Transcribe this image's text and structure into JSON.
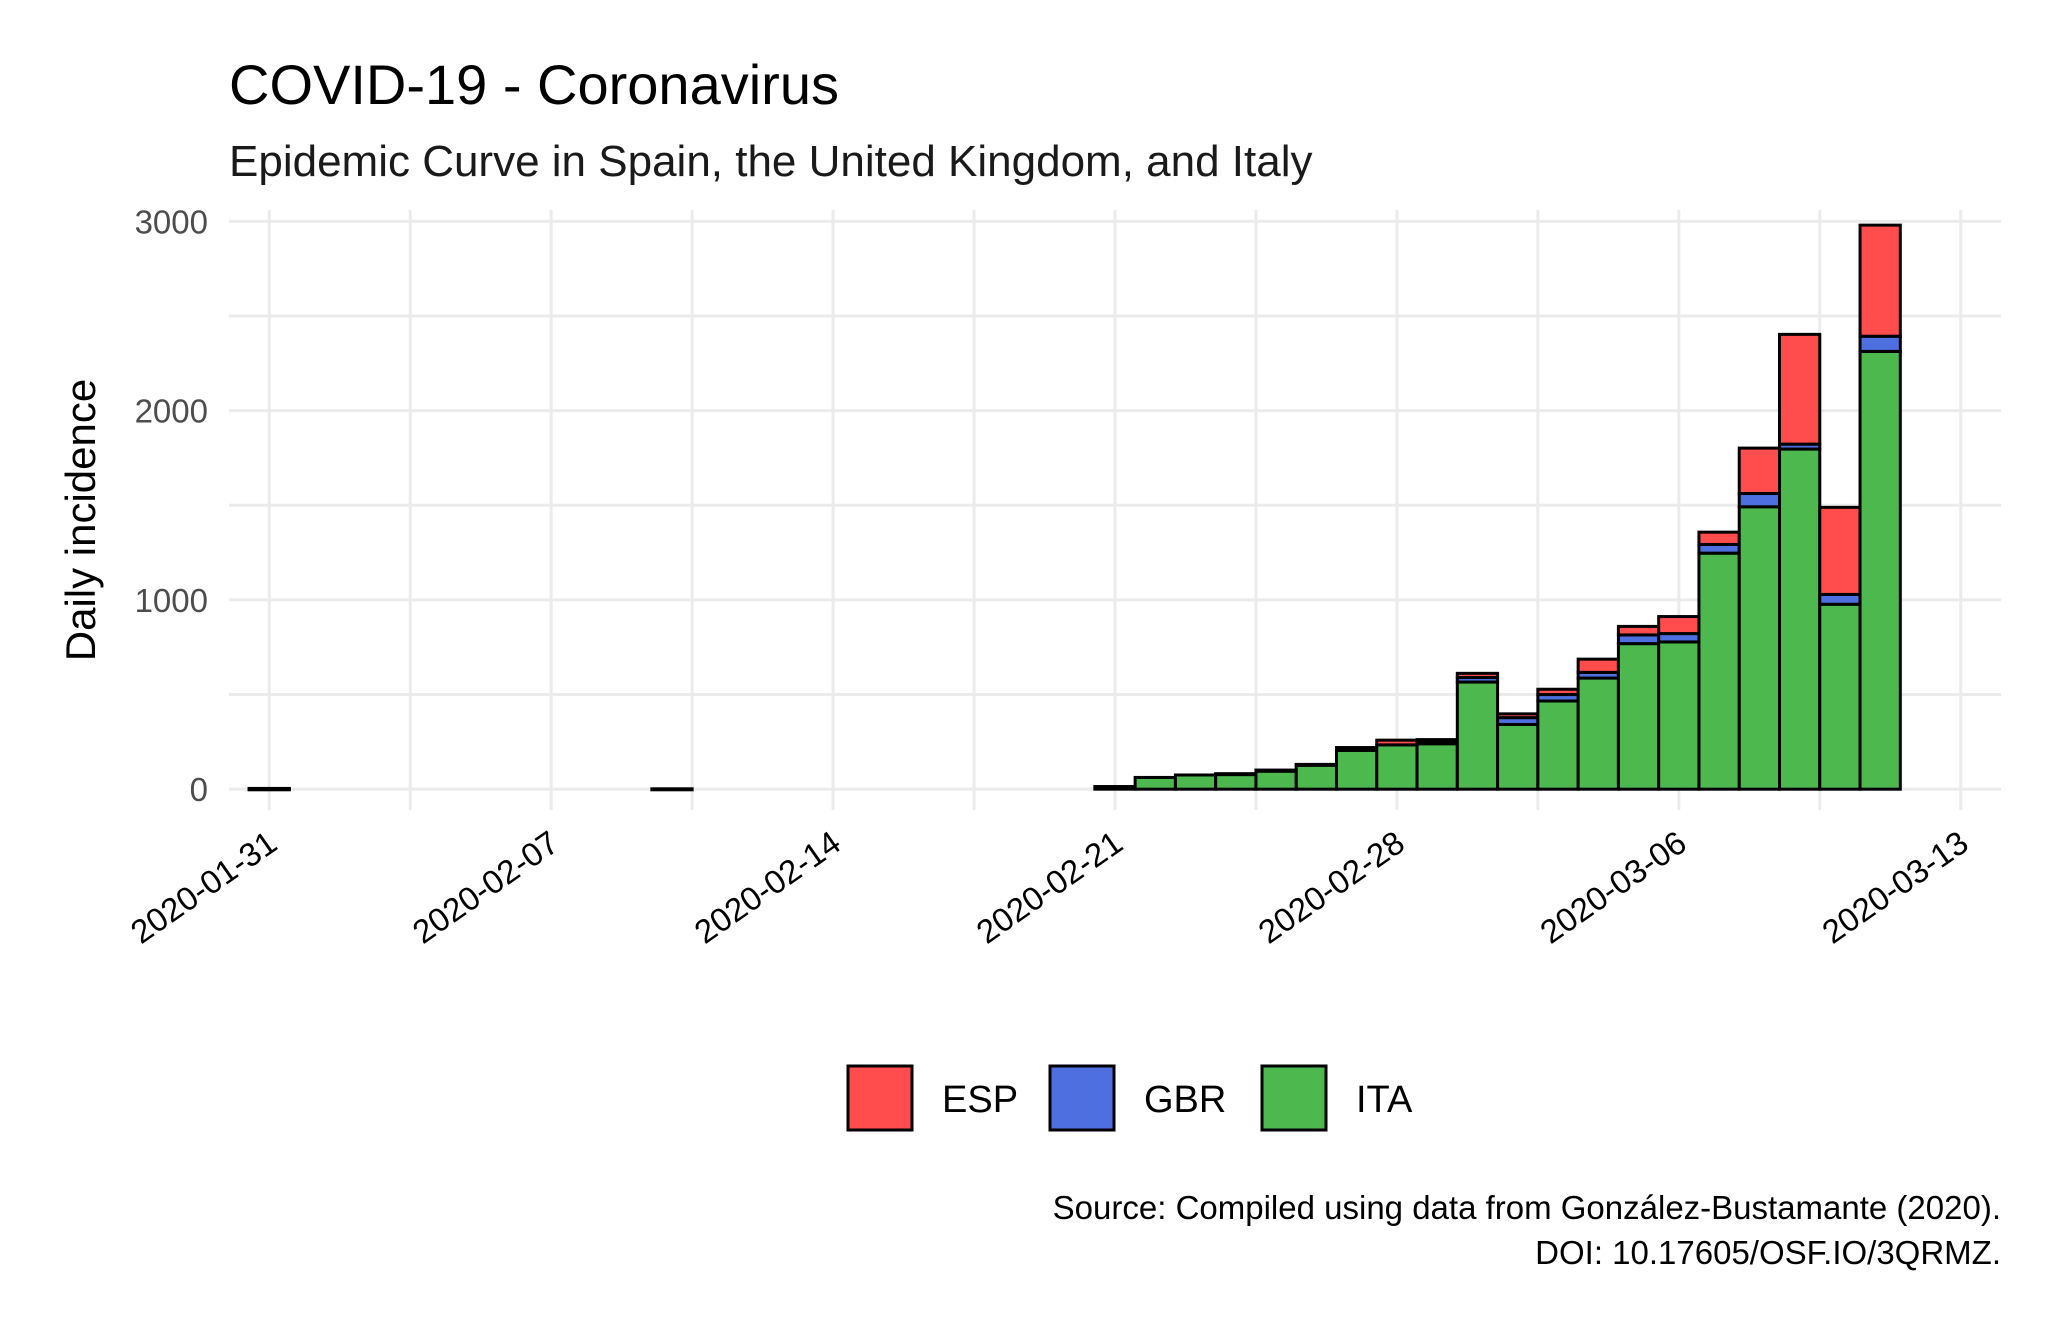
{
  "chart_data": {
    "type": "bar",
    "stacked": true,
    "title": "COVID-19 - Coronavirus",
    "subtitle": "Epidemic Curve in Spain, the United Kingdom, and Italy",
    "xlabel": "",
    "ylabel": "Daily incidence",
    "x_start_date": "2020-01-31",
    "x_ticks": [
      "2020-01-31",
      "2020-02-07",
      "2020-02-14",
      "2020-02-21",
      "2020-02-28",
      "2020-03-06",
      "2020-03-13"
    ],
    "x_range": [
      "2020-01-30",
      "2020-03-14"
    ],
    "y_ticks": [
      0,
      1000,
      2000,
      3000
    ],
    "ylim": [
      -110,
      3060
    ],
    "grid": true,
    "legend_position": "bottom",
    "categories": [
      "2020-01-31",
      "2020-02-01",
      "2020-02-02",
      "2020-02-03",
      "2020-02-04",
      "2020-02-05",
      "2020-02-06",
      "2020-02-07",
      "2020-02-08",
      "2020-02-09",
      "2020-02-10",
      "2020-02-11",
      "2020-02-12",
      "2020-02-13",
      "2020-02-14",
      "2020-02-15",
      "2020-02-16",
      "2020-02-17",
      "2020-02-18",
      "2020-02-19",
      "2020-02-20",
      "2020-02-21",
      "2020-02-22",
      "2020-02-23",
      "2020-02-24",
      "2020-02-25",
      "2020-02-26",
      "2020-02-27",
      "2020-02-28",
      "2020-02-29",
      "2020-03-01",
      "2020-03-02",
      "2020-03-03",
      "2020-03-04",
      "2020-03-05",
      "2020-03-06",
      "2020-03-07",
      "2020-03-08",
      "2020-03-09",
      "2020-03-10",
      "2020-03-11",
      "2020-03-12"
    ],
    "series": [
      {
        "name": "ITA",
        "color": "#4db84d",
        "values": [
          2,
          0,
          0,
          0,
          0,
          0,
          0,
          0,
          0,
          0,
          0,
          0,
          0,
          0,
          0,
          0,
          0,
          0,
          0,
          0,
          0,
          14,
          62,
          75,
          78,
          95,
          128,
          205,
          234,
          240,
          566,
          342,
          466,
          587,
          769,
          778,
          1247,
          1492,
          1797,
          977,
          2313,
          0
        ]
      },
      {
        "name": "GBR",
        "color": "#4d6fe0",
        "values": [
          2,
          0,
          0,
          0,
          0,
          0,
          0,
          0,
          0,
          0,
          2,
          0,
          0,
          0,
          0,
          0,
          0,
          0,
          0,
          0,
          0,
          0,
          0,
          0,
          0,
          0,
          0,
          0,
          0,
          12,
          24,
          36,
          34,
          30,
          46,
          44,
          46,
          70,
          26,
          52,
          80,
          0
        ]
      },
      {
        "name": "ESP",
        "color": "#ff4d4d",
        "values": [
          0,
          0,
          0,
          0,
          0,
          0,
          0,
          0,
          0,
          0,
          0,
          0,
          0,
          0,
          0,
          0,
          0,
          0,
          0,
          0,
          0,
          0,
          0,
          0,
          4,
          6,
          3,
          15,
          25,
          10,
          22,
          20,
          28,
          70,
          45,
          90,
          65,
          240,
          580,
          460,
          587,
          0
        ]
      }
    ]
  },
  "legend": {
    "items": [
      {
        "label": "ESP",
        "color": "#ff4d4d"
      },
      {
        "label": "GBR",
        "color": "#4d6fe0"
      },
      {
        "label": "ITA",
        "color": "#4db84d"
      }
    ]
  },
  "caption": {
    "line1": "Source: Compiled using data from González-Bustamante (2020).",
    "line2": "DOI: 10.17605/OSF.IO/3QRMZ."
  }
}
